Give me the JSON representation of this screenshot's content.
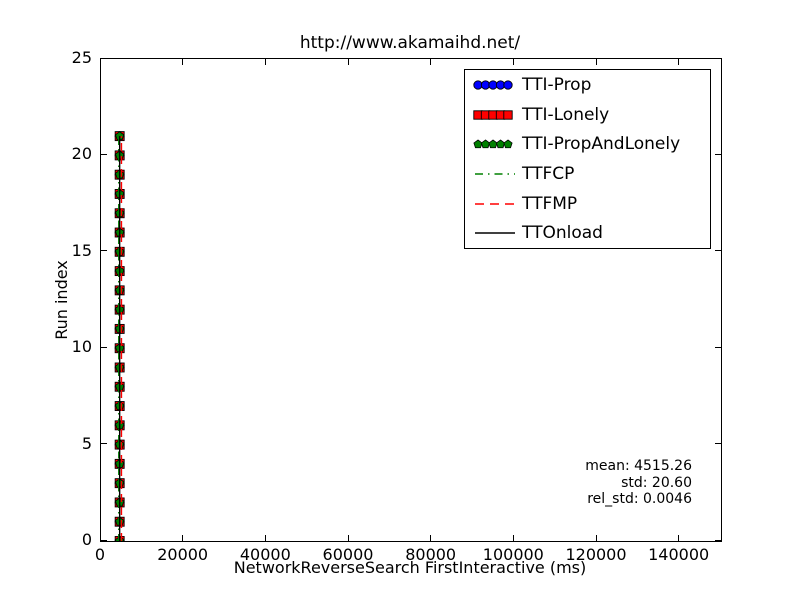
{
  "title": "http://www.akamaihd.net/",
  "x_axis": {
    "label": "NetworkReverseSearch FirstInteractive (ms)",
    "tick_labels": [
      "0",
      "20000",
      "40000",
      "60000",
      "80000",
      "100000",
      "120000",
      "140000"
    ]
  },
  "y_axis": {
    "label": "Run index",
    "tick_labels": [
      "0",
      "5",
      "10",
      "15",
      "20",
      "25"
    ]
  },
  "legend": {
    "entries": [
      {
        "label": "TTI-Prop",
        "type": "marker",
        "marker": "circle",
        "color": "#0000ff"
      },
      {
        "label": "TTI-Lonely",
        "type": "marker",
        "marker": "square",
        "color": "#ff0000"
      },
      {
        "label": "TTI-PropAndLonely",
        "type": "marker",
        "marker": "pentagon",
        "color": "#008000"
      },
      {
        "label": "TTFCP",
        "type": "line",
        "style": "dash-dot",
        "color": "#008000"
      },
      {
        "label": "TTFMP",
        "type": "line",
        "style": "dashed",
        "color": "#ff0000"
      },
      {
        "label": "TTOnload",
        "type": "line",
        "style": "solid",
        "color": "#000000"
      }
    ]
  },
  "stats": {
    "lines": [
      "mean: 4515.26",
      "std: 20.60",
      "rel_std: 0.0046"
    ]
  },
  "chart_data": {
    "type": "scatter",
    "title": "http://www.akamaihd.net/",
    "xlabel": "NetworkReverseSearch FirstInteractive (ms)",
    "ylabel": "Run index",
    "xlim": [
      0,
      150000
    ],
    "ylim": [
      0,
      25
    ],
    "xticks": [
      0,
      20000,
      40000,
      60000,
      80000,
      100000,
      120000,
      140000
    ],
    "yticks": [
      0,
      5,
      10,
      15,
      20,
      25
    ],
    "grid": false,
    "legend_position": "upper right",
    "run_indices": [
      0,
      1,
      2,
      3,
      4,
      5,
      6,
      7,
      8,
      9,
      10,
      11,
      12,
      13,
      14,
      15,
      16,
      17,
      18,
      19,
      20,
      21
    ],
    "scatter_series": [
      {
        "name": "TTI-Prop",
        "marker": "circle",
        "color": "#0000ff",
        "x_ms": 4515.26
      },
      {
        "name": "TTI-Lonely",
        "marker": "square",
        "color": "#ff0000",
        "x_ms": 4515.26
      },
      {
        "name": "TTI-PropAndLonely",
        "marker": "pentagon",
        "color": "#008000",
        "x_ms": 4515.26
      }
    ],
    "line_series": [
      {
        "name": "TTFCP",
        "style": "dash-dot",
        "color": "#008000",
        "x_ms": 4300,
        "y_span": [
          0,
          21
        ]
      },
      {
        "name": "TTOnload",
        "style": "solid",
        "color": "#000000",
        "x_ms": 4515.26,
        "y_span": [
          0,
          21
        ]
      },
      {
        "name": "TTFMP",
        "style": "dashed",
        "color": "#ff0000",
        "x_ms": 4950,
        "y_span": [
          0,
          21
        ]
      }
    ],
    "stats": {
      "mean": 4515.26,
      "std": 20.6,
      "rel_std": 0.0046
    }
  }
}
